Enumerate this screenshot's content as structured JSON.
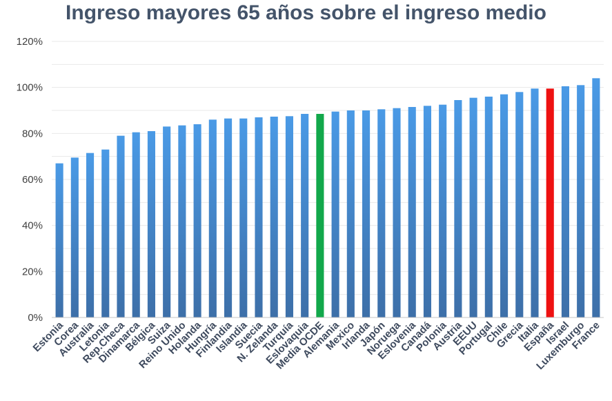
{
  "chart_data": {
    "type": "bar",
    "title": "Ingreso mayores 65 años sobre el ingreso medio",
    "xlabel": "",
    "ylabel": "",
    "ylim": [
      0,
      120
    ],
    "yticks": [
      0,
      20,
      40,
      60,
      80,
      100,
      120
    ],
    "ytick_labels": [
      "0%",
      "20%",
      "40%",
      "60%",
      "80%",
      "100%",
      "120%"
    ],
    "grid": true,
    "legend": "none",
    "categories": [
      "Estonia",
      "Corea",
      "Australia",
      "Letonia",
      "Rep.Checa",
      "Dinamarca",
      "Bélgica",
      "Suiza",
      "Reino Unido",
      "Holanda",
      "Hungría",
      "Finlandia",
      "Islandia",
      "Suecia",
      "N. Zelanda",
      "Turquía",
      "Eslovaquia",
      "Media OCDE",
      "Alemania",
      "Mexico",
      "Irlanda",
      "Japón",
      "Noruega",
      "Eslovenia",
      "Canadá",
      "Polonia",
      "Austria",
      "EEUU",
      "Portugal",
      "Chile",
      "Grecia",
      "Italia",
      "España",
      "Israel",
      "Luxemburgo",
      "France"
    ],
    "values": [
      67,
      69.5,
      71.5,
      73,
      79,
      80.5,
      81,
      83,
      83.5,
      84,
      86,
      86.5,
      86.5,
      87,
      87.3,
      87.5,
      88.5,
      88.5,
      89.5,
      90,
      90,
      90.5,
      91,
      91.5,
      92,
      92.5,
      94.5,
      95.5,
      96,
      97,
      98,
      99.5,
      99.5,
      100.5,
      101,
      104
    ],
    "colors": {
      "default_top": "#4a9ae6",
      "default_bottom": "#3d6fa8",
      "highlight_avg": "#12a84b",
      "highlight_spain": "#ee1111",
      "grid": "#e8e8e8",
      "axis": "#c6c6c6"
    },
    "highlights": {
      "Media OCDE": "highlight_avg",
      "España": "highlight_spain"
    }
  }
}
